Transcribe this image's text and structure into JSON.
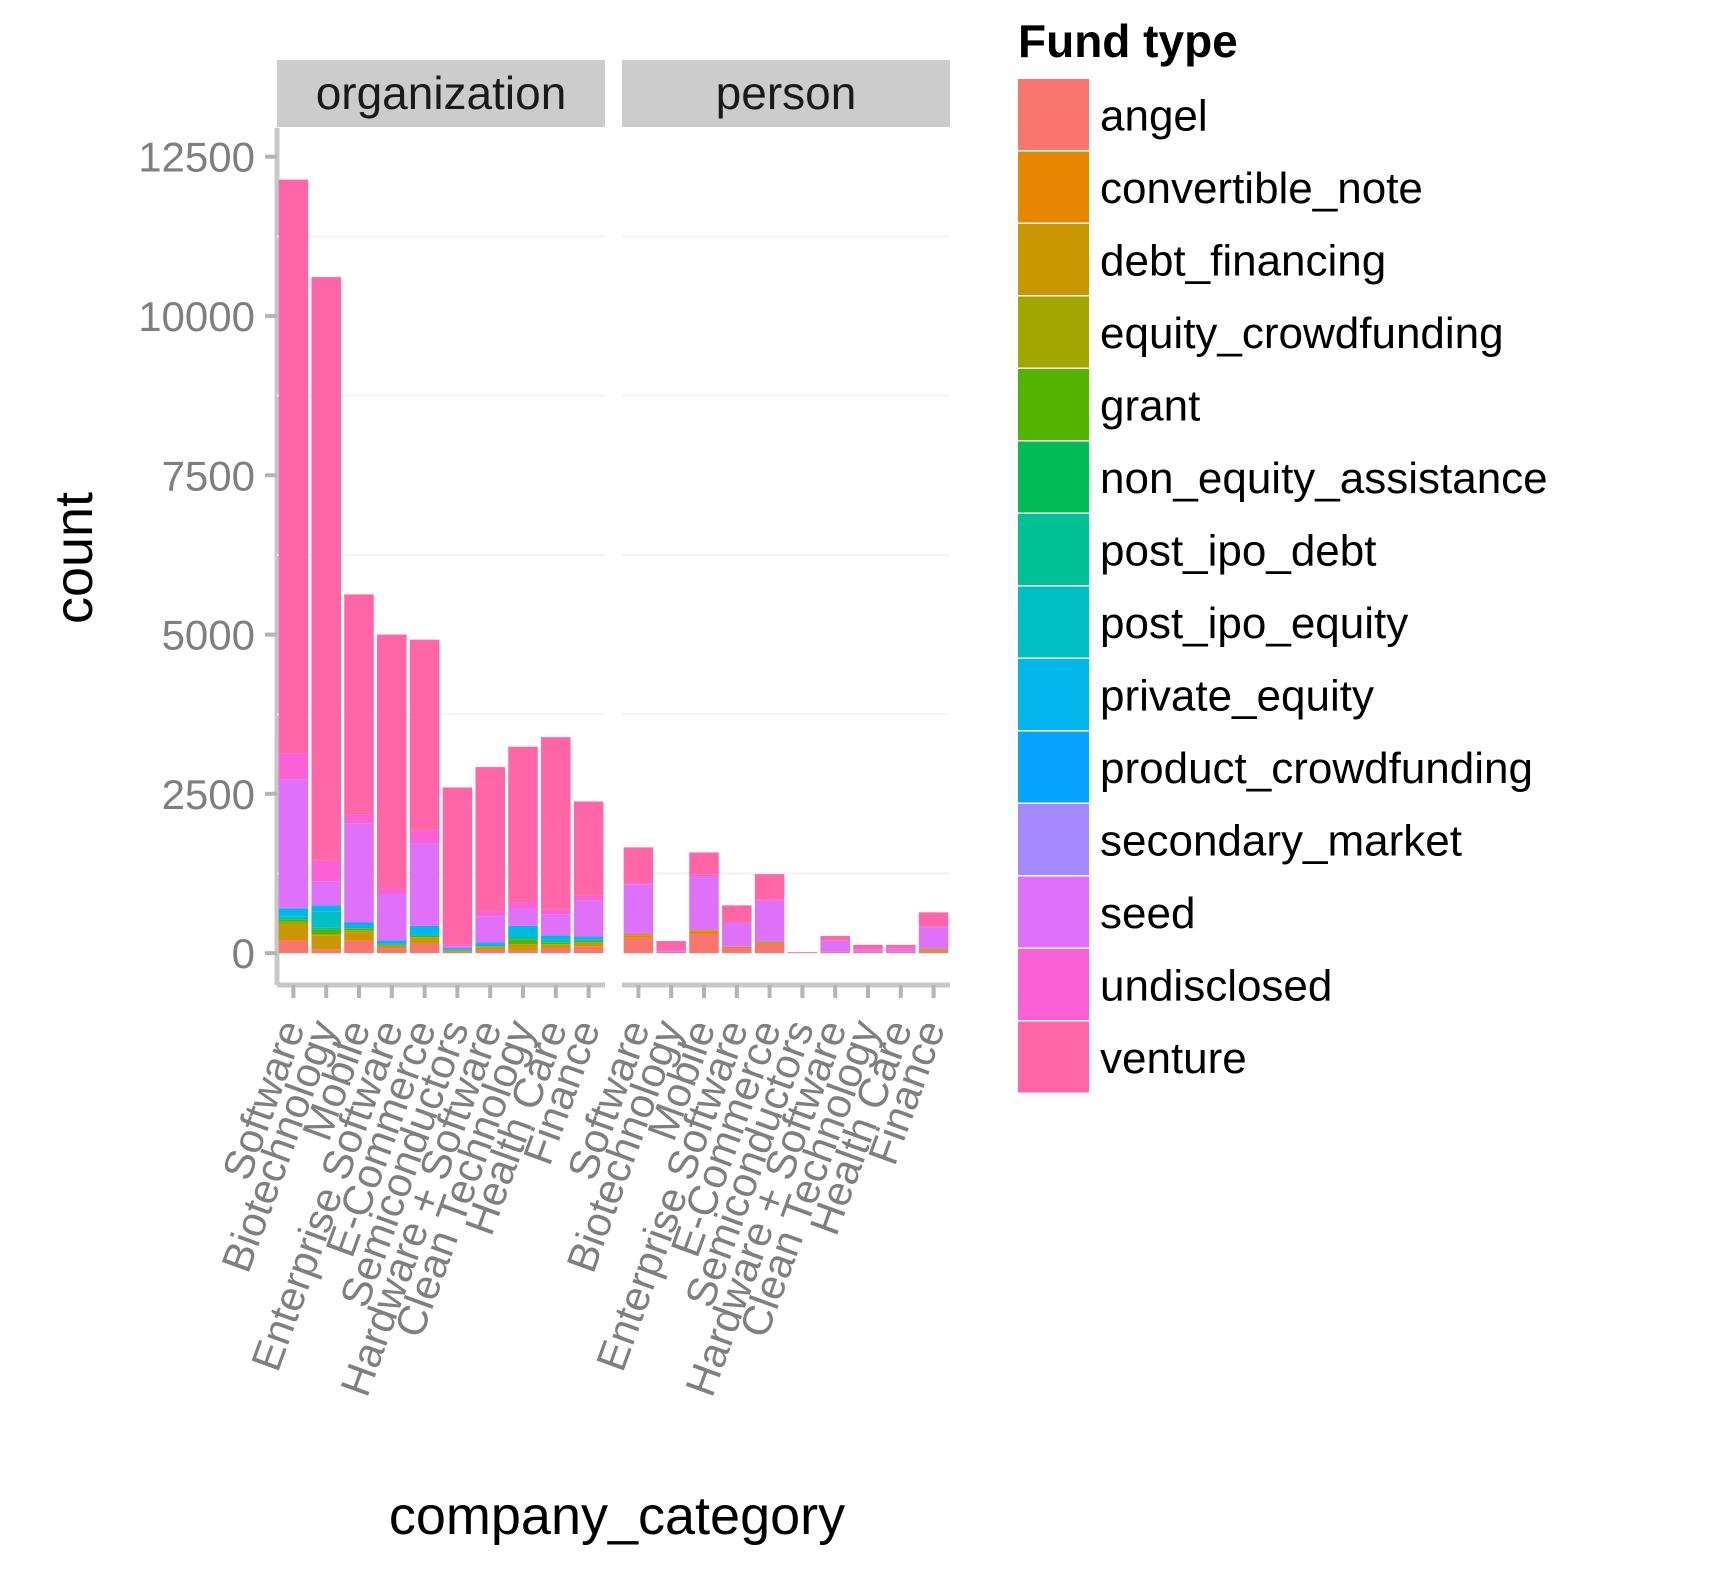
{
  "chart_data": {
    "type": "bar",
    "stacked": true,
    "faceted": true,
    "xlabel": "company_category",
    "ylabel": "count",
    "ylim": [
      -500,
      12950
    ],
    "yticks": [
      0,
      2500,
      5000,
      7500,
      10000,
      12500
    ],
    "grid": true,
    "legend_position": "right",
    "legend_title": "Fund type",
    "categories": [
      "Software",
      "Biotechnology",
      "Mobile",
      "Enterprise Software",
      "E-Commerce",
      "Semiconductors",
      "Hardware + Software",
      "Clean Technology",
      "Health Care",
      "Finance"
    ],
    "fund_types": [
      {
        "name": "angel",
        "color": "#F8766D"
      },
      {
        "name": "convertible_note",
        "color": "#E58700"
      },
      {
        "name": "debt_financing",
        "color": "#C99800"
      },
      {
        "name": "equity_crowdfunding",
        "color": "#A3A500"
      },
      {
        "name": "grant",
        "color": "#53B400"
      },
      {
        "name": "non_equity_assistance",
        "color": "#00BC56"
      },
      {
        "name": "post_ipo_debt",
        "color": "#00C094"
      },
      {
        "name": "post_ipo_equity",
        "color": "#00BFC4"
      },
      {
        "name": "private_equity",
        "color": "#00B6EB"
      },
      {
        "name": "product_crowdfunding",
        "color": "#06A4FF"
      },
      {
        "name": "secondary_market",
        "color": "#A58AFF"
      },
      {
        "name": "seed",
        "color": "#DF70F8"
      },
      {
        "name": "undisclosed",
        "color": "#FB61D7"
      },
      {
        "name": "venture",
        "color": "#FF66A8"
      }
    ],
    "facets": [
      {
        "name": "organization",
        "stacks": [
          {
            "category": "Software",
            "segments": [
              {
                "fund": "angel",
                "value": 200
              },
              {
                "fund": "convertible_note",
                "value": 30
              },
              {
                "fund": "debt_financing",
                "value": 220
              },
              {
                "fund": "equity_crowdfunding",
                "value": 40
              },
              {
                "fund": "grant",
                "value": 40
              },
              {
                "fund": "post_ipo_equity",
                "value": 50
              },
              {
                "fund": "private_equity",
                "value": 120
              },
              {
                "fund": "secondary_market",
                "value": 20
              },
              {
                "fund": "seed",
                "value": 2000
              },
              {
                "fund": "undisclosed",
                "value": 420
              },
              {
                "fund": "venture",
                "value": 9000
              }
            ]
          },
          {
            "category": "Biotechnology",
            "segments": [
              {
                "fund": "angel",
                "value": 60
              },
              {
                "fund": "debt_financing",
                "value": 220
              },
              {
                "fund": "equity_crowdfunding",
                "value": 20
              },
              {
                "fund": "grant",
                "value": 70
              },
              {
                "fund": "post_ipo_debt",
                "value": 30
              },
              {
                "fund": "post_ipo_equity",
                "value": 250
              },
              {
                "fund": "private_equity",
                "value": 100
              },
              {
                "fund": "seed",
                "value": 370
              },
              {
                "fund": "undisclosed",
                "value": 330
              },
              {
                "fund": "venture",
                "value": 9160
              }
            ]
          },
          {
            "category": "Mobile",
            "segments": [
              {
                "fund": "angel",
                "value": 200
              },
              {
                "fund": "convertible_note",
                "value": 30
              },
              {
                "fund": "debt_financing",
                "value": 100
              },
              {
                "fund": "equity_crowdfunding",
                "value": 30
              },
              {
                "fund": "grant",
                "value": 30
              },
              {
                "fund": "private_equity",
                "value": 60
              },
              {
                "fund": "product_crowdfunding",
                "value": 30
              },
              {
                "fund": "seed",
                "value": 1550
              },
              {
                "fund": "undisclosed",
                "value": 140
              },
              {
                "fund": "venture",
                "value": 3460
              }
            ]
          },
          {
            "category": "Enterprise Software",
            "segments": [
              {
                "fund": "angel",
                "value": 80
              },
              {
                "fund": "debt_financing",
                "value": 50
              },
              {
                "fund": "post_ipo_equity",
                "value": 20
              },
              {
                "fund": "private_equity",
                "value": 50
              },
              {
                "fund": "seed",
                "value": 720
              },
              {
                "fund": "undisclosed",
                "value": 100
              },
              {
                "fund": "venture",
                "value": 3980
              }
            ]
          },
          {
            "category": "E-Commerce",
            "segments": [
              {
                "fund": "angel",
                "value": 150
              },
              {
                "fund": "debt_financing",
                "value": 100
              },
              {
                "fund": "grant",
                "value": 20
              },
              {
                "fund": "post_ipo_equity",
                "value": 30
              },
              {
                "fund": "private_equity",
                "value": 130
              },
              {
                "fund": "seed",
                "value": 1290
              },
              {
                "fund": "undisclosed",
                "value": 200
              },
              {
                "fund": "venture",
                "value": 3000
              }
            ]
          },
          {
            "category": "Semiconductors",
            "segments": [
              {
                "fund": "angel",
                "value": 20
              },
              {
                "fund": "debt_financing",
                "value": 20
              },
              {
                "fund": "post_ipo_equity",
                "value": 20
              },
              {
                "fund": "private_equity",
                "value": 20
              },
              {
                "fund": "seed",
                "value": 30
              },
              {
                "fund": "undisclosed",
                "value": 20
              },
              {
                "fund": "venture",
                "value": 2470
              }
            ]
          },
          {
            "category": "Hardware + Software",
            "segments": [
              {
                "fund": "angel",
                "value": 50
              },
              {
                "fund": "debt_financing",
                "value": 40
              },
              {
                "fund": "equity_crowdfunding",
                "value": 20
              },
              {
                "fund": "private_equity",
                "value": 40
              },
              {
                "fund": "product_crowdfunding",
                "value": 20
              },
              {
                "fund": "seed",
                "value": 400
              },
              {
                "fund": "undisclosed",
                "value": 90
              },
              {
                "fund": "venture",
                "value": 2260
              }
            ]
          },
          {
            "category": "Clean Technology",
            "segments": [
              {
                "fund": "angel",
                "value": 40
              },
              {
                "fund": "debt_financing",
                "value": 100
              },
              {
                "fund": "grant",
                "value": 80
              },
              {
                "fund": "post_ipo_equity",
                "value": 80
              },
              {
                "fund": "private_equity",
                "value": 130
              },
              {
                "fund": "seed",
                "value": 270
              },
              {
                "fund": "undisclosed",
                "value": 100
              },
              {
                "fund": "venture",
                "value": 2440
              }
            ]
          },
          {
            "category": "Health Care",
            "segments": [
              {
                "fund": "angel",
                "value": 80
              },
              {
                "fund": "debt_financing",
                "value": 60
              },
              {
                "fund": "grant",
                "value": 30
              },
              {
                "fund": "post_ipo_equity",
                "value": 50
              },
              {
                "fund": "private_equity",
                "value": 60
              },
              {
                "fund": "seed",
                "value": 330
              },
              {
                "fund": "undisclosed",
                "value": 70
              },
              {
                "fund": "venture",
                "value": 2710
              }
            ]
          },
          {
            "category": "Finance",
            "segments": [
              {
                "fund": "angel",
                "value": 100
              },
              {
                "fund": "debt_financing",
                "value": 70
              },
              {
                "fund": "grant",
                "value": 20
              },
              {
                "fund": "post_ipo_equity",
                "value": 20
              },
              {
                "fund": "private_equity",
                "value": 50
              },
              {
                "fund": "seed",
                "value": 560
              },
              {
                "fund": "undisclosed",
                "value": 80
              },
              {
                "fund": "venture",
                "value": 1480
              }
            ]
          }
        ]
      },
      {
        "name": "person",
        "stacks": [
          {
            "category": "Software",
            "segments": [
              {
                "fund": "angel",
                "value": 240
              },
              {
                "fund": "convertible_note",
                "value": 40
              },
              {
                "fund": "debt_financing",
                "value": 20
              },
              {
                "fund": "seed",
                "value": 780
              },
              {
                "fund": "undisclosed",
                "value": 20
              },
              {
                "fund": "venture",
                "value": 560
              }
            ]
          },
          {
            "category": "Biotechnology",
            "segments": [
              {
                "fund": "angel",
                "value": 20
              },
              {
                "fund": "seed",
                "value": 30
              },
              {
                "fund": "venture",
                "value": 140
              }
            ]
          },
          {
            "category": "Mobile",
            "segments": [
              {
                "fund": "angel",
                "value": 300
              },
              {
                "fund": "convertible_note",
                "value": 40
              },
              {
                "fund": "debt_financing",
                "value": 20
              },
              {
                "fund": "seed",
                "value": 850
              },
              {
                "fund": "undisclosed",
                "value": 20
              },
              {
                "fund": "venture",
                "value": 350
              }
            ]
          },
          {
            "category": "Enterprise Software",
            "segments": [
              {
                "fund": "angel",
                "value": 80
              },
              {
                "fund": "debt_financing",
                "value": 20
              },
              {
                "fund": "seed",
                "value": 380
              },
              {
                "fund": "venture",
                "value": 270
              }
            ]
          },
          {
            "category": "E-Commerce",
            "segments": [
              {
                "fund": "angel",
                "value": 150
              },
              {
                "fund": "debt_financing",
                "value": 20
              },
              {
                "fund": "grant",
                "value": 10
              },
              {
                "fund": "seed",
                "value": 640
              },
              {
                "fund": "undisclosed",
                "value": 20
              },
              {
                "fund": "venture",
                "value": 400
              }
            ]
          },
          {
            "category": "Semiconductors",
            "segments": [
              {
                "fund": "venture",
                "value": 15
              }
            ]
          },
          {
            "category": "Hardware + Software",
            "segments": [
              {
                "fund": "angel",
                "value": 20
              },
              {
                "fund": "seed",
                "value": 180
              },
              {
                "fund": "venture",
                "value": 70
              }
            ]
          },
          {
            "category": "Clean Technology",
            "segments": [
              {
                "fund": "angel",
                "value": 20
              },
              {
                "fund": "seed",
                "value": 40
              },
              {
                "fund": "venture",
                "value": 70
              }
            ]
          },
          {
            "category": "Health Care",
            "segments": [
              {
                "fund": "angel",
                "value": 20
              },
              {
                "fund": "seed",
                "value": 50
              },
              {
                "fund": "venture",
                "value": 60
              }
            ]
          },
          {
            "category": "Finance",
            "segments": [
              {
                "fund": "angel",
                "value": 40
              },
              {
                "fund": "debt_financing",
                "value": 20
              },
              {
                "fund": "grant",
                "value": 10
              },
              {
                "fund": "seed",
                "value": 330
              },
              {
                "fund": "undisclosed",
                "value": 20
              },
              {
                "fund": "venture",
                "value": 220
              }
            ]
          }
        ]
      }
    ]
  }
}
